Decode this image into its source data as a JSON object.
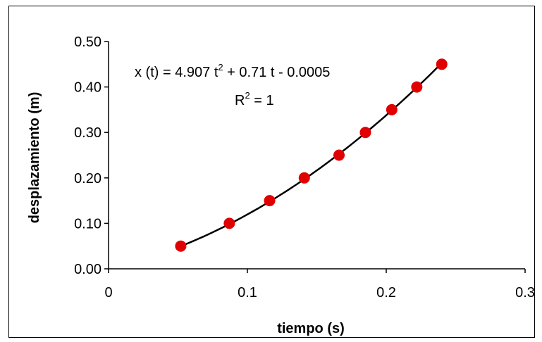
{
  "chart_data": {
    "type": "scatter",
    "title": "",
    "xlabel": "tiempo (s)",
    "ylabel": "desplazamiento (m)",
    "xlim": [
      0,
      0.3
    ],
    "ylim": [
      0,
      0.5
    ],
    "x_ticks": [
      "0",
      "0.1",
      "0.2",
      "0.3"
    ],
    "x_tick_values": [
      0,
      0.1,
      0.2,
      0.3
    ],
    "y_ticks": [
      "0.00",
      "0.10",
      "0.20",
      "0.30",
      "0.40",
      "0.50"
    ],
    "y_tick_values": [
      0,
      0.1,
      0.2,
      0.3,
      0.4,
      0.5
    ],
    "grid": false,
    "legend": "none",
    "series": [
      {
        "x": [
          0.052,
          0.087,
          0.116,
          0.141,
          0.166,
          0.185,
          0.204,
          0.222,
          0.24
        ],
        "y": [
          0.05,
          0.1,
          0.15,
          0.2,
          0.25,
          0.3,
          0.35,
          0.4,
          0.45
        ],
        "marker_color": "#e00000"
      }
    ],
    "trendline": {
      "type": "polynomial",
      "coefficients": {
        "a": 4.907,
        "b": 0.71,
        "c": -0.0005
      },
      "x_range": [
        0.052,
        0.24
      ],
      "color": "#000000",
      "equation_prefix": "x (t) = 4.907 t",
      "equation_exp": "2",
      "equation_suffix": " + 0.71 t - 0.0005",
      "r2_label": "R",
      "r2_exp": "2",
      "r2_value": " = 1"
    }
  }
}
